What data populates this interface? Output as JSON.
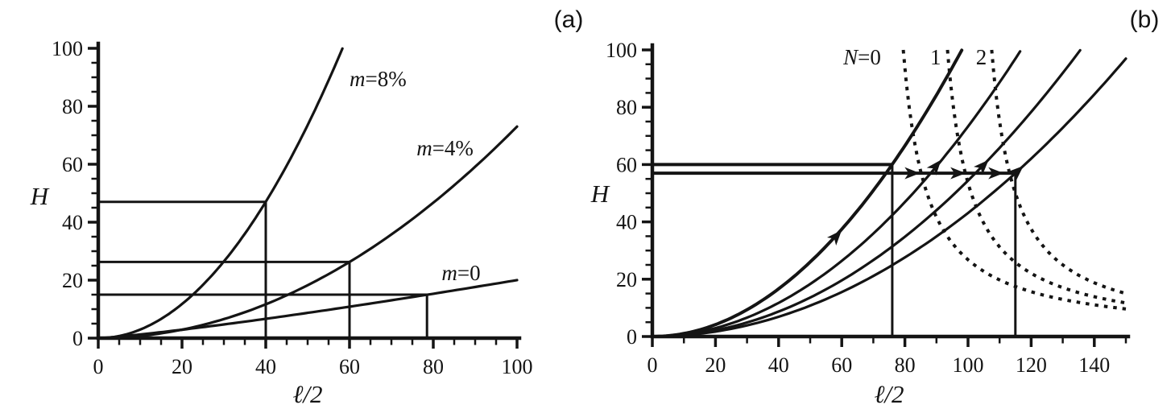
{
  "figure": {
    "background": "#ffffff",
    "ink_color": "#141414"
  },
  "chart_data": [
    {
      "type": "line",
      "tag": "(a)",
      "xlabel": "ℓ/2",
      "ylabel": "H",
      "xlim": [
        0,
        100
      ],
      "ylim": [
        0,
        100
      ],
      "xticks": [
        0,
        20,
        40,
        60,
        80,
        100
      ],
      "yticks": [
        0,
        20,
        40,
        60,
        80,
        100
      ],
      "x_minor_step": 5,
      "y_minor_step": 5,
      "grid": false,
      "legend": "labels drawn next to curves",
      "curves": [
        {
          "label": "m=8%",
          "style": "solid",
          "model": "power",
          "k": 0.0294,
          "p": 2,
          "x_start": 0,
          "x_end": 58.3,
          "label_pos": [
            60,
            87
          ],
          "label_anchor": "start"
        },
        {
          "label": "m=4%",
          "style": "solid",
          "model": "power",
          "k": 0.0073,
          "p": 2,
          "x_start": 0,
          "x_end": 100,
          "label_pos": [
            76,
            63
          ],
          "label_anchor": "start"
        },
        {
          "label": "m=0",
          "style": "solid",
          "model": "power",
          "k": 0.0797,
          "p": 1.2,
          "x_start": 0,
          "x_end": 100,
          "label_pos": [
            82,
            20
          ],
          "label_anchor": "start"
        }
      ],
      "construction_points": [
        {
          "x": 40,
          "H": 47,
          "on_curve": "m=8%"
        },
        {
          "x": 60,
          "H": 26.3,
          "on_curve": "m=4%"
        },
        {
          "x": 78.5,
          "H": 15,
          "on_curve": "m=0"
        }
      ],
      "h_lines": [
        {
          "H": 47,
          "x_from": 0,
          "x_to": 40,
          "w": 3
        },
        {
          "H": 26.3,
          "x_from": 0,
          "x_to": 60,
          "w": 3
        },
        {
          "H": 15,
          "x_from": 0,
          "x_to": 78.5,
          "w": 3
        }
      ],
      "v_lines": [
        {
          "x": 40,
          "h_from": 0,
          "h_to": 47,
          "w": 3
        },
        {
          "x": 60,
          "h_from": 0,
          "h_to": 26.3,
          "w": 3
        },
        {
          "x": 78.5,
          "h_from": 0,
          "h_to": 15,
          "w": 3
        }
      ],
      "arrows": []
    },
    {
      "type": "line",
      "tag": "(b)",
      "xlabel": "ℓ/2",
      "ylabel": "H",
      "xlim": [
        0,
        150
      ],
      "ylim": [
        0,
        100
      ],
      "xticks": [
        0,
        20,
        40,
        60,
        80,
        100,
        120,
        140
      ],
      "yticks": [
        0,
        20,
        40,
        60,
        80,
        100
      ],
      "x_minor_step": 10,
      "y_minor_step": 5,
      "grid": false,
      "legend": "dotted curves labeled N=0, 1, 2; solid curves are growth trajectories",
      "curves": [
        {
          "label": "",
          "style": "solid",
          "model": "power",
          "k": 0.0104,
          "p": 2,
          "x_start": 0,
          "x_end": 98,
          "emphasis": true
        },
        {
          "label": "",
          "style": "solid",
          "model": "power",
          "k": 0.00733,
          "p": 2,
          "x_start": 0,
          "x_end": 116.5
        },
        {
          "label": "",
          "style": "solid",
          "model": "power",
          "k": 0.00544,
          "p": 2,
          "x_start": 0,
          "x_end": 135.5
        },
        {
          "label": "",
          "style": "solid",
          "model": "power",
          "k": 0.00431,
          "p": 2,
          "x_start": 0,
          "x_end": 150
        },
        {
          "label": "N=0",
          "style": "dotted",
          "model": "hyperbola",
          "A": 750,
          "x0": 72,
          "x_start": 79.5,
          "x_end": 150,
          "label_pos": [
            60.5,
            95
          ],
          "label_anchor": "start"
        },
        {
          "label": "1",
          "style": "dotted",
          "model": "hyperbola",
          "A": 750,
          "x0": 86,
          "x_start": 93.5,
          "x_end": 150,
          "label_pos": [
            88,
            95
          ],
          "label_anchor": "start"
        },
        {
          "label": "2",
          "style": "dotted",
          "model": "hyperbola",
          "A": 750,
          "x0": 100,
          "x_start": 107.5,
          "x_end": 150,
          "label_pos": [
            102.5,
            95
          ],
          "label_anchor": "start"
        }
      ],
      "construction_points": [
        {
          "x": 76,
          "H": 60,
          "on_curve": "solid-1"
        },
        {
          "x": 115,
          "H": 57,
          "on_curve": "solid-4"
        }
      ],
      "h_lines": [
        {
          "H": 60,
          "x_from": 0,
          "x_to": 76,
          "w": 4
        },
        {
          "H": 57,
          "x_from": 0,
          "x_to": 115,
          "w": 4
        }
      ],
      "v_lines": [
        {
          "x": 76,
          "h_from": 0,
          "h_to": 60,
          "w": 3
        },
        {
          "x": 115,
          "h_from": 0,
          "h_to": 57,
          "w": 3
        }
      ],
      "arrows": [
        {
          "x": 59.5,
          "H": 36.5,
          "dir_deg": 51
        },
        {
          "x": 84,
          "H": 57,
          "dir_deg": 0
        },
        {
          "x": 91,
          "H": 61,
          "dir_deg": 53
        },
        {
          "x": 98.5,
          "H": 57,
          "dir_deg": 0
        },
        {
          "x": 106,
          "H": 61,
          "dir_deg": 49
        },
        {
          "x": 110.5,
          "H": 57,
          "dir_deg": 0
        },
        {
          "x": 117,
          "H": 59,
          "dir_deg": 45
        }
      ]
    }
  ]
}
